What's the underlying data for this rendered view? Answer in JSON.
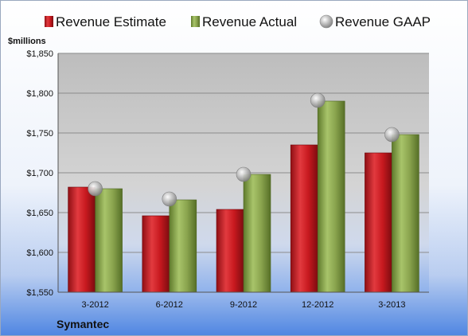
{
  "chart_data": {
    "type": "bar",
    "ylabel": "$millions",
    "categories": [
      "3-2012",
      "6-2012",
      "9-2012",
      "12-2012",
      "3-2013"
    ],
    "series": [
      {
        "name": "Revenue Estimate",
        "type": "bar",
        "color": "#c0181e",
        "values": [
          1682,
          1646,
          1654,
          1735,
          1725
        ]
      },
      {
        "name": "Revenue Actual",
        "type": "bar",
        "color": "#8aa44e",
        "values": [
          1680,
          1666,
          1698,
          1790,
          1748
        ]
      },
      {
        "name": "Revenue GAAP",
        "type": "marker",
        "color": "#a9a9a9",
        "values": [
          1680,
          1667,
          1698,
          1791,
          1748
        ]
      }
    ],
    "ylim": [
      1550,
      1850
    ],
    "yticks": [
      "$1,550",
      "$1,600",
      "$1,650",
      "$1,700",
      "$1,750",
      "$1,800",
      "$1,850"
    ],
    "ytick_values": [
      1550,
      1600,
      1650,
      1700,
      1750,
      1800,
      1850
    ],
    "grid": true,
    "legend_position": "top"
  },
  "footer": {
    "company": "Symantec"
  }
}
